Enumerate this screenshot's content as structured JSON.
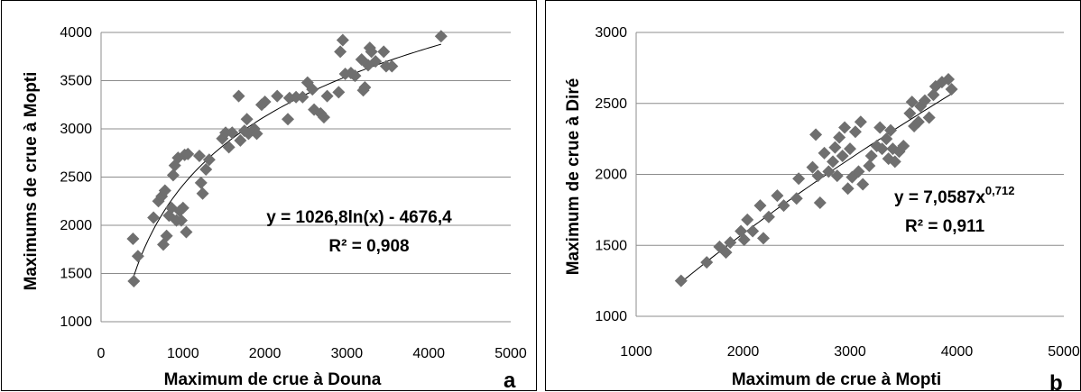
{
  "chart_data": [
    {
      "type": "scatter",
      "panel_label": "a",
      "xlabel": "Maximum de crue à Douna",
      "ylabel": "Maximums de crue à Mopti",
      "xlim": [
        0,
        5000
      ],
      "ylim": [
        1000,
        4000
      ],
      "x_ticks": [
        "0",
        "1000",
        "2000",
        "3000",
        "4000",
        "5000"
      ],
      "y_ticks": [
        "1000",
        "1500",
        "2000",
        "2500",
        "3000",
        "3500",
        "4000"
      ],
      "grid": "horizontal",
      "marker": "diamond",
      "marker_color": "#6f6f6f",
      "trendline": {
        "kind": "log",
        "a": 1026.8,
        "b": -4676.4,
        "equation": "y = 1026,8ln(x) - 4676,4",
        "r2": "R² = 0,908"
      },
      "points": [
        [
          390,
          1860
        ],
        [
          400,
          1420
        ],
        [
          450,
          1680
        ],
        [
          640,
          2080
        ],
        [
          700,
          2250
        ],
        [
          740,
          2300
        ],
        [
          760,
          1800
        ],
        [
          780,
          2360
        ],
        [
          800,
          1890
        ],
        [
          830,
          2100
        ],
        [
          860,
          2180
        ],
        [
          880,
          2520
        ],
        [
          900,
          2620
        ],
        [
          920,
          2050
        ],
        [
          940,
          2700
        ],
        [
          960,
          2150
        ],
        [
          980,
          2050
        ],
        [
          1000,
          2180
        ],
        [
          1020,
          2730
        ],
        [
          1040,
          1930
        ],
        [
          1060,
          2740
        ],
        [
          1200,
          2720
        ],
        [
          1220,
          2440
        ],
        [
          1240,
          2330
        ],
        [
          1280,
          2580
        ],
        [
          1320,
          2680
        ],
        [
          1480,
          2900
        ],
        [
          1520,
          2960
        ],
        [
          1560,
          2810
        ],
        [
          1600,
          2960
        ],
        [
          1680,
          3340
        ],
        [
          1700,
          2880
        ],
        [
          1750,
          2980
        ],
        [
          1780,
          3100
        ],
        [
          1800,
          2950
        ],
        [
          1870,
          3000
        ],
        [
          1900,
          2950
        ],
        [
          1960,
          3250
        ],
        [
          2000,
          3280
        ],
        [
          2150,
          3340
        ],
        [
          2280,
          3100
        ],
        [
          2300,
          3320
        ],
        [
          2380,
          3330
        ],
        [
          2460,
          3330
        ],
        [
          2520,
          3480
        ],
        [
          2580,
          3410
        ],
        [
          2600,
          3200
        ],
        [
          2680,
          3160
        ],
        [
          2720,
          3120
        ],
        [
          2760,
          3340
        ],
        [
          2900,
          3380
        ],
        [
          2920,
          3800
        ],
        [
          2950,
          3920
        ],
        [
          2980,
          3570
        ],
        [
          3050,
          3580
        ],
        [
          3100,
          3550
        ],
        [
          3180,
          3720
        ],
        [
          3200,
          3400
        ],
        [
          3220,
          3430
        ],
        [
          3260,
          3660
        ],
        [
          3280,
          3840
        ],
        [
          3300,
          3800
        ],
        [
          3350,
          3700
        ],
        [
          3450,
          3800
        ],
        [
          3480,
          3650
        ],
        [
          3550,
          3650
        ],
        [
          4150,
          3960
        ]
      ]
    },
    {
      "type": "scatter",
      "panel_label": "b",
      "xlabel": "Maximum de crue à Mopti",
      "ylabel": "Maximum de crue à Diré",
      "xlim": [
        1000,
        5000
      ],
      "ylim": [
        1000,
        3000
      ],
      "x_ticks": [
        "1000",
        "2000",
        "3000",
        "4000",
        "5000"
      ],
      "y_ticks": [
        "1000",
        "1500",
        "2000",
        "2500",
        "3000"
      ],
      "grid": "horizontal",
      "marker": "diamond",
      "marker_color": "#6f6f6f",
      "trendline": {
        "kind": "power",
        "a": 7.0587,
        "b": 0.712,
        "equation_prefix": "y = 7,0587x",
        "equation_exponent": "0,712",
        "r2": "R² = 0,911"
      },
      "points": [
        [
          1420,
          1250
        ],
        [
          1660,
          1380
        ],
        [
          1780,
          1490
        ],
        [
          1840,
          1450
        ],
        [
          1880,
          1520
        ],
        [
          1980,
          1600
        ],
        [
          2010,
          1540
        ],
        [
          2040,
          1680
        ],
        [
          2090,
          1600
        ],
        [
          2160,
          1780
        ],
        [
          2190,
          1550
        ],
        [
          2240,
          1700
        ],
        [
          2320,
          1850
        ],
        [
          2380,
          1780
        ],
        [
          2500,
          1830
        ],
        [
          2520,
          1970
        ],
        [
          2650,
          2050
        ],
        [
          2680,
          2280
        ],
        [
          2700,
          1990
        ],
        [
          2720,
          1800
        ],
        [
          2760,
          2150
        ],
        [
          2800,
          2020
        ],
        [
          2840,
          2090
        ],
        [
          2860,
          2190
        ],
        [
          2880,
          1990
        ],
        [
          2900,
          2260
        ],
        [
          2930,
          2130
        ],
        [
          2950,
          2330
        ],
        [
          2980,
          1900
        ],
        [
          3000,
          2180
        ],
        [
          3020,
          1980
        ],
        [
          3050,
          2300
        ],
        [
          3080,
          2020
        ],
        [
          3100,
          2370
        ],
        [
          3120,
          1930
        ],
        [
          3180,
          2060
        ],
        [
          3200,
          2130
        ],
        [
          3250,
          2200
        ],
        [
          3280,
          2330
        ],
        [
          3300,
          2180
        ],
        [
          3340,
          2250
        ],
        [
          3360,
          2110
        ],
        [
          3380,
          2310
        ],
        [
          3400,
          2180
        ],
        [
          3420,
          2090
        ],
        [
          3460,
          2160
        ],
        [
          3500,
          2200
        ],
        [
          3560,
          2430
        ],
        [
          3580,
          2510
        ],
        [
          3600,
          2340
        ],
        [
          3640,
          2370
        ],
        [
          3660,
          2480
        ],
        [
          3700,
          2520
        ],
        [
          3740,
          2400
        ],
        [
          3780,
          2560
        ],
        [
          3800,
          2620
        ],
        [
          3860,
          2650
        ],
        [
          3920,
          2670
        ],
        [
          3950,
          2600
        ]
      ]
    }
  ]
}
